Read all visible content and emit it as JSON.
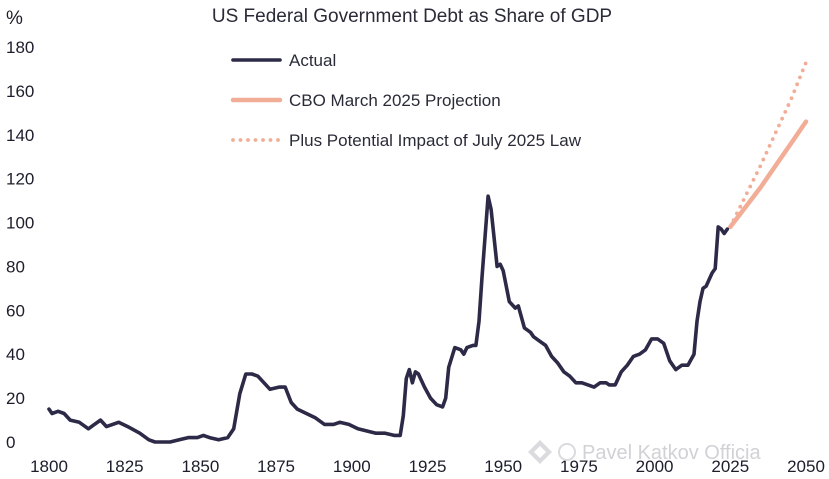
{
  "chart_data": {
    "type": "line",
    "title": "US Federal Government Debt as Share of GDP",
    "ylabel": "%",
    "xlabel": "",
    "xlim": [
      1800,
      2050
    ],
    "ylim": [
      0,
      180
    ],
    "x_ticks": [
      1800,
      1825,
      1850,
      1875,
      1900,
      1925,
      1950,
      1975,
      2000,
      2025,
      2050
    ],
    "y_ticks": [
      0,
      20,
      40,
      60,
      80,
      100,
      120,
      140,
      160,
      180
    ],
    "grid": false,
    "legend_position": "top-center",
    "series": [
      {
        "name": "Actual",
        "style": "solid",
        "color": "#2d2a48",
        "points": [
          [
            1800,
            15
          ],
          [
            1801,
            13
          ],
          [
            1803,
            14
          ],
          [
            1805,
            13
          ],
          [
            1807,
            10
          ],
          [
            1810,
            9
          ],
          [
            1813,
            6
          ],
          [
            1815,
            8
          ],
          [
            1817,
            10
          ],
          [
            1819,
            7
          ],
          [
            1821,
            8
          ],
          [
            1823,
            9
          ],
          [
            1826,
            7
          ],
          [
            1830,
            4
          ],
          [
            1833,
            1
          ],
          [
            1835,
            0
          ],
          [
            1840,
            0
          ],
          [
            1843,
            1
          ],
          [
            1846,
            2
          ],
          [
            1849,
            2
          ],
          [
            1851,
            3
          ],
          [
            1853,
            2
          ],
          [
            1856,
            1
          ],
          [
            1859,
            2
          ],
          [
            1861,
            6
          ],
          [
            1863,
            22
          ],
          [
            1865,
            31
          ],
          [
            1867,
            31
          ],
          [
            1869,
            30
          ],
          [
            1871,
            27
          ],
          [
            1873,
            24
          ],
          [
            1876,
            25
          ],
          [
            1878,
            25
          ],
          [
            1880,
            18
          ],
          [
            1882,
            15
          ],
          [
            1885,
            13
          ],
          [
            1888,
            11
          ],
          [
            1891,
            8
          ],
          [
            1894,
            8
          ],
          [
            1896,
            9
          ],
          [
            1899,
            8
          ],
          [
            1902,
            6
          ],
          [
            1905,
            5
          ],
          [
            1908,
            4
          ],
          [
            1911,
            4
          ],
          [
            1914,
            3
          ],
          [
            1916,
            3
          ],
          [
            1917,
            12
          ],
          [
            1918,
            29
          ],
          [
            1919,
            33
          ],
          [
            1920,
            27
          ],
          [
            1921,
            32
          ],
          [
            1922,
            31
          ],
          [
            1924,
            25
          ],
          [
            1926,
            20
          ],
          [
            1928,
            17
          ],
          [
            1930,
            16
          ],
          [
            1931,
            20
          ],
          [
            1932,
            34
          ],
          [
            1934,
            43
          ],
          [
            1936,
            42
          ],
          [
            1937,
            40
          ],
          [
            1938,
            43
          ],
          [
            1940,
            44
          ],
          [
            1941,
            44
          ],
          [
            1942,
            55
          ],
          [
            1943,
            75
          ],
          [
            1945,
            112
          ],
          [
            1946,
            106
          ],
          [
            1947,
            93
          ],
          [
            1948,
            80
          ],
          [
            1949,
            81
          ],
          [
            1950,
            78
          ],
          [
            1952,
            64
          ],
          [
            1954,
            61
          ],
          [
            1955,
            62
          ],
          [
            1957,
            52
          ],
          [
            1959,
            50
          ],
          [
            1960,
            48
          ],
          [
            1962,
            46
          ],
          [
            1964,
            44
          ],
          [
            1966,
            39
          ],
          [
            1968,
            36
          ],
          [
            1970,
            32
          ],
          [
            1972,
            30
          ],
          [
            1974,
            27
          ],
          [
            1976,
            27
          ],
          [
            1978,
            26
          ],
          [
            1980,
            25
          ],
          [
            1982,
            27
          ],
          [
            1984,
            27
          ],
          [
            1985,
            26
          ],
          [
            1987,
            26
          ],
          [
            1989,
            32
          ],
          [
            1991,
            35
          ],
          [
            1993,
            39
          ],
          [
            1995,
            40
          ],
          [
            1997,
            42
          ],
          [
            1999,
            47
          ],
          [
            2001,
            47
          ],
          [
            2003,
            45
          ],
          [
            2005,
            37
          ],
          [
            2007,
            33
          ],
          [
            2009,
            35
          ],
          [
            2011,
            35
          ],
          [
            2013,
            40
          ],
          [
            2014,
            55
          ],
          [
            2015,
            64
          ],
          [
            2016,
            70
          ],
          [
            2017,
            71
          ],
          [
            2018,
            74
          ],
          [
            2019,
            77
          ],
          [
            2020,
            79
          ],
          [
            2021,
            98
          ],
          [
            2022,
            97
          ],
          [
            2023,
            95
          ],
          [
            2024,
            97
          ]
        ]
      },
      {
        "name": "CBO March 2025 Projection",
        "style": "thick",
        "color": "#f2ad97",
        "points": [
          [
            2025,
            98
          ],
          [
            2030,
            107
          ],
          [
            2035,
            116
          ],
          [
            2040,
            126
          ],
          [
            2045,
            136
          ],
          [
            2050,
            146
          ]
        ]
      },
      {
        "name": "Plus Potential Impact of July 2025 Law",
        "style": "dotted",
        "color": "#f2ad97",
        "points": [
          [
            2025,
            98
          ],
          [
            2030,
            112
          ],
          [
            2035,
            126
          ],
          [
            2040,
            141
          ],
          [
            2045,
            156
          ],
          [
            2050,
            173
          ]
        ]
      }
    ]
  },
  "watermark": "Pavel Katkov Officia"
}
